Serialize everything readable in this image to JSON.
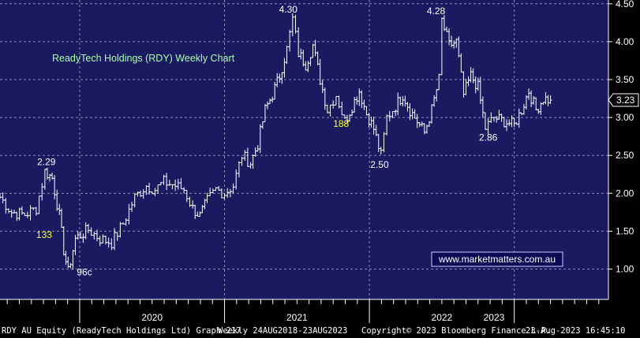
{
  "chart_data": {
    "type": "ohlc",
    "title": "ReadyTech Holdings (RDY) Weekly Chart",
    "ylim": [
      0.6,
      4.55
    ],
    "yticks": [
      "1.00",
      "1.50",
      "2.00",
      "2.50",
      "3.00",
      "3.50",
      "4.00",
      "4.50"
    ],
    "x_years": [
      "2020",
      "2021",
      "2022",
      "2023"
    ],
    "last_price": "3.23",
    "watermark": "www.marketmatters.com.au",
    "x_range": [
      2019.45,
      2023.65
    ],
    "year_boundaries": [
      2020,
      2021,
      2022,
      2023
    ],
    "year_label_x": [
      2020.5,
      2021.5,
      2022.5,
      2022.86
    ],
    "keypoints": [
      [
        2019.45,
        1.95
      ],
      [
        2019.53,
        1.75
      ],
      [
        2019.62,
        1.72
      ],
      [
        2019.7,
        1.8
      ],
      [
        2019.76,
        2.29
      ],
      [
        2019.81,
        2.2
      ],
      [
        2019.86,
        1.7
      ],
      [
        2019.89,
        1.25
      ],
      [
        2019.92,
        0.96
      ],
      [
        2019.97,
        1.4
      ],
      [
        2020.06,
        1.52
      ],
      [
        2020.14,
        1.4
      ],
      [
        2020.22,
        1.35
      ],
      [
        2020.3,
        1.6
      ],
      [
        2020.38,
        1.95
      ],
      [
        2020.46,
        2.1
      ],
      [
        2020.52,
        2.05
      ],
      [
        2020.58,
        2.15
      ],
      [
        2020.66,
        2.1
      ],
      [
        2020.72,
        2.05
      ],
      [
        2020.78,
        1.8
      ],
      [
        2020.83,
        1.7
      ],
      [
        2020.88,
        1.9
      ],
      [
        2020.94,
        2.05
      ],
      [
        2021.0,
        2.0
      ],
      [
        2021.06,
        2.1
      ],
      [
        2021.12,
        2.5
      ],
      [
        2021.18,
        2.4
      ],
      [
        2021.23,
        2.65
      ],
      [
        2021.28,
        3.1
      ],
      [
        2021.33,
        3.3
      ],
      [
        2021.38,
        3.55
      ],
      [
        2021.43,
        3.9
      ],
      [
        2021.47,
        4.3
      ],
      [
        2021.51,
        3.85
      ],
      [
        2021.56,
        3.7
      ],
      [
        2021.61,
        3.95
      ],
      [
        2021.66,
        3.5
      ],
      [
        2021.71,
        3.1
      ],
      [
        2021.77,
        3.3
      ],
      [
        2021.83,
        2.95
      ],
      [
        2021.88,
        3.15
      ],
      [
        2021.93,
        3.35
      ],
      [
        2021.98,
        3.05
      ],
      [
        2022.03,
        2.85
      ],
      [
        2022.08,
        2.5
      ],
      [
        2022.12,
        3.0
      ],
      [
        2022.18,
        3.15
      ],
      [
        2022.23,
        3.3
      ],
      [
        2022.28,
        3.1
      ],
      [
        2022.33,
        2.95
      ],
      [
        2022.38,
        2.8
      ],
      [
        2022.43,
        3.1
      ],
      [
        2022.48,
        3.5
      ],
      [
        2022.5,
        4.28
      ],
      [
        2022.55,
        3.95
      ],
      [
        2022.6,
        4.0
      ],
      [
        2022.65,
        3.3
      ],
      [
        2022.7,
        3.55
      ],
      [
        2022.75,
        3.4
      ],
      [
        2022.8,
        2.86
      ],
      [
        2022.86,
        3.0
      ],
      [
        2022.93,
        2.95
      ],
      [
        2023.0,
        2.9
      ],
      [
        2023.05,
        3.1
      ],
      [
        2023.1,
        3.35
      ],
      [
        2023.15,
        3.1
      ],
      [
        2023.2,
        3.25
      ],
      [
        2023.25,
        3.23
      ]
    ],
    "annotations": [
      {
        "text": "2.29",
        "x": 2019.77,
        "y": 2.29,
        "pos": "above",
        "color": "#ffffff"
      },
      {
        "text": "133",
        "x": 2019.7,
        "y": 1.45,
        "pos": "right",
        "color": "#ffff3d"
      },
      {
        "text": "96c",
        "x": 2019.98,
        "y": 0.96,
        "pos": "right",
        "color": "#ffffff"
      },
      {
        "text": "4.30",
        "x": 2021.44,
        "y": 4.3,
        "pos": "above",
        "color": "#ffffff"
      },
      {
        "text": "188",
        "x": 2021.75,
        "y": 2.92,
        "pos": "right",
        "color": "#ffff3d"
      },
      {
        "text": "2.50",
        "x": 2022.07,
        "y": 2.5,
        "pos": "below",
        "color": "#ffffff"
      },
      {
        "text": "4.28",
        "x": 2022.46,
        "y": 4.28,
        "pos": "above",
        "color": "#ffffff"
      },
      {
        "text": "2.86",
        "x": 2022.82,
        "y": 2.86,
        "pos": "below",
        "color": "#ffffff"
      }
    ]
  },
  "colors": {
    "plot_bg": "#1a1a60",
    "grid": "#8a8ab0",
    "bars": "#ffffff",
    "title": "#aaffaa",
    "highlight": "#ffff3d",
    "watermark_bg": "#0a0a55",
    "watermark_border": "#cfcfff",
    "badge_bg": "#000000"
  },
  "footer": {
    "security": "RDY AU Equity (ReadyTech Holdings Ltd) Graph 217",
    "period": "Weekly 24AUG2018-23AUG2023",
    "copyright": "Copyright© 2023 Bloomberg Finance L.P.",
    "timestamp": "23-Aug-2023 16:45:10"
  }
}
